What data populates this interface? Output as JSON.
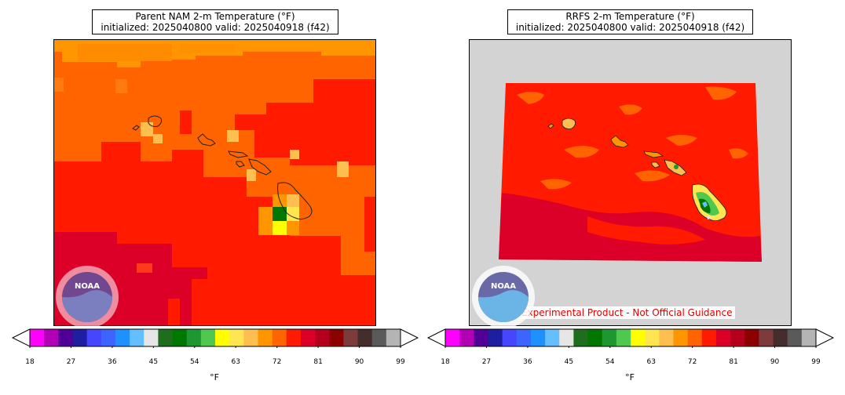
{
  "left_panel": {
    "title_line1": "Parent NAM 2-m Temperature (°F)",
    "title_line2": "initialized: 2025040800 valid: 2025040918 (f42)"
  },
  "right_panel": {
    "title_line1": "RRFS 2-m Temperature (°F)",
    "title_line2": "initialized: 2025040800 valid: 2025040918 (f42)",
    "note": "Experimental Product - Not Official Guidance"
  },
  "logo": {
    "text": "NOAA",
    "icon": "noaa-logo"
  },
  "colorbar": {
    "unit_label": "°F",
    "ticks": [
      "18",
      "27",
      "36",
      "45",
      "54",
      "63",
      "72",
      "81",
      "90",
      "99"
    ],
    "colors": [
      "#ff00ff",
      "#b400b4",
      "#500096",
      "#1e1ea0",
      "#4646ff",
      "#3c64ff",
      "#1e90ff",
      "#64beff",
      "#e6e6e6",
      "#1e6e1e",
      "#007800",
      "#1e9632",
      "#50c850",
      "#ffff00",
      "#ffe650",
      "#ffbe50",
      "#ff9600",
      "#ff6400",
      "#ff1a00",
      "#dc0028",
      "#b4001e",
      "#8c0000",
      "#7d3c3c",
      "#462d2d",
      "#5a5a5a",
      "#b4b4b4"
    ]
  }
}
